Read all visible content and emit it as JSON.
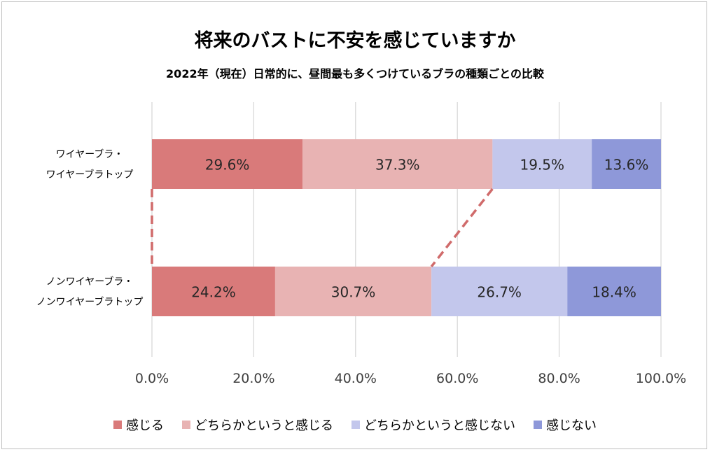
{
  "chart_data": {
    "type": "bar",
    "orientation": "horizontal",
    "stacked": true,
    "normalized_percent": true,
    "title": "将来のバストに不安を感じていますか",
    "subtitle": "2022年（現在）日常的に、昼間最も多くつけているブラの種類ごとの比較",
    "categories": [
      [
        "ワイヤーブラ・",
        "ワイヤーブラトップ"
      ],
      [
        "ノンワイヤーブラ・",
        "ノンワイヤーブラトップ"
      ]
    ],
    "series": [
      {
        "name": "感じる",
        "values": [
          29.6,
          24.2
        ],
        "labels": [
          "29.6%",
          "24.2%"
        ],
        "color": "#d97a7a"
      },
      {
        "name": "どちらかというと感じる",
        "values": [
          37.3,
          30.7
        ],
        "labels": [
          "37.3%",
          "30.7%"
        ],
        "color": "#e8b3b3"
      },
      {
        "name": "どちらかというと感じない",
        "values": [
          19.5,
          26.7
        ],
        "labels": [
          "19.5%",
          "26.7%"
        ],
        "color": "#c3c7ec"
      },
      {
        "name": "感じない",
        "values": [
          13.6,
          18.4
        ],
        "labels": [
          "13.6%",
          "18.4%"
        ],
        "color": "#8e98d9"
      }
    ],
    "xlim": [
      0,
      100
    ],
    "xticks": [
      "0.0%",
      "20.0%",
      "40.0%",
      "60.0%",
      "80.0%",
      "100.0%"
    ],
    "grid": true,
    "legend_position": "bottom",
    "connector_lines": {
      "style": "dashed",
      "color": "#d06b6b"
    }
  }
}
